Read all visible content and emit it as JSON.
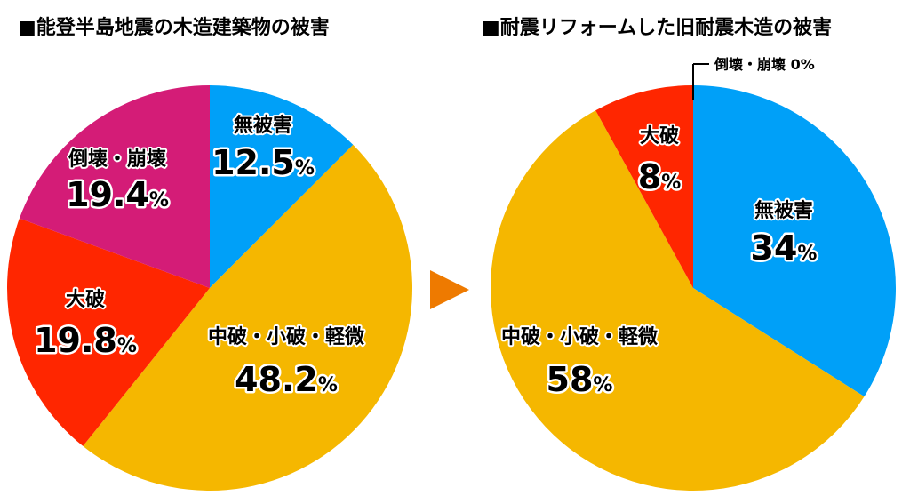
{
  "chart_data": [
    {
      "type": "pie",
      "title": "■能登半島地震の木造建築物の被害",
      "unit": "%",
      "slices": [
        {
          "label": "無被害",
          "value": 12.5,
          "color": "#00a0f8"
        },
        {
          "label": "中破・小破・軽微",
          "value": 48.2,
          "color": "#f5b700"
        },
        {
          "label": "大破",
          "value": 19.8,
          "color": "#ff2600"
        },
        {
          "label": "倒壊・崩壊",
          "value": 19.4,
          "color": "#d41c77"
        }
      ]
    },
    {
      "type": "pie",
      "title": "■耐震リフォームした旧耐震木造の被害",
      "unit": "%",
      "slices": [
        {
          "label": "無被害",
          "value": 34,
          "color": "#00a0f8"
        },
        {
          "label": "中破・小破・軽微",
          "value": 58,
          "color": "#f5b700"
        },
        {
          "label": "大破",
          "value": 8,
          "color": "#ff2600"
        },
        {
          "label": "倒壊・崩壊",
          "value": 0,
          "color": "#d41c77"
        }
      ],
      "callout": "倒壊・崩壊 0%"
    }
  ],
  "arrow_color": "#ee7a00"
}
